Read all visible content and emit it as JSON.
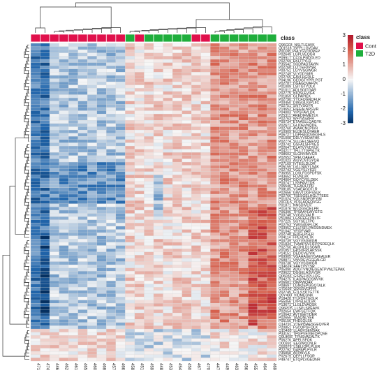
{
  "chart_data": {
    "type": "heatmap",
    "title": "",
    "class_annotation_label": "class",
    "color_scale": {
      "min": -3,
      "max": 3,
      "ticks": [
        3,
        2,
        1,
        0,
        -1,
        -2,
        -3
      ],
      "low_color": "#2166ac",
      "mid_color": "#f7f7f7",
      "high_color": "#d6604d",
      "extreme_color": "#b2182b"
    },
    "class_legend": {
      "title": "class",
      "items": [
        {
          "name": "Cont",
          "color": "#e0104b"
        },
        {
          "name": "T2D",
          "color": "#1fae3c"
        }
      ]
    },
    "columns": [
      "471",
      "474",
      "446",
      "462",
      "461",
      "465",
      "460",
      "468",
      "457",
      "466",
      "458",
      "451",
      "459",
      "448",
      "453",
      "454",
      "450",
      "467",
      "470",
      "447",
      "449",
      "463",
      "456",
      "455",
      "464",
      "469"
    ],
    "column_class": [
      "Cont",
      "Cont",
      "Cont",
      "Cont",
      "Cont",
      "Cont",
      "Cont",
      "Cont",
      "Cont",
      "Cont",
      "T2D",
      "Cont",
      "T2D",
      "T2D",
      "T2D",
      "T2D",
      "T2D",
      "Cont",
      "Cont",
      "T2D",
      "T2D",
      "T2D",
      "T2D",
      "T2D",
      "T2D",
      "T2D"
    ],
    "row_labels": [
      "Q96G03_NSLTLEAVK",
      "Q01518_ISFPLLGVDAV",
      "P0DJI8_PHLYGVTIDPEP",
      "P02649_LGPLVEQGR",
      "P09917_CCDLPNDDLED",
      "P02769_EKLTTYLR",
      "P35542_SGDPAQTAVIN",
      "P02768_LLTTEFVPSR",
      "P00751_LGYVSGWGR",
      "P02749_VLYDDYMR",
      "P02765_EAVLHGDLE",
      "P04196_GEDGTYPPLPGT",
      "P02787_DGAGDVAFVK",
      "P01009_LSITGTYDLK",
      "P01011_ADLSGITGAR",
      "P02775_NIQSLEVIGK",
      "P01859_GLPAPIEK",
      "P02790_YYCFQGNQFLR",
      "P00450_DIASGLIGPLIIC",
      "P02751_SNTVSGYR",
      "P19652_EIEEALNPGVR",
      "P04003_YIPSFAVLDK",
      "P25311_AREDIFMETLK",
      "P02763_WFYIASAFR",
      "P00734_ETAASLLQAGYK",
      "P02671_GLIDEVNQDF",
      "P02760_AVAACNLPIVR",
      "P10909_ELDESLQVAER",
      "P06727_LGPHAGDVEGHLS",
      "P01008_DDLYVSDAFHK",
      "P02774_SLLGELSEEVQ",
      "P20742_GSFALSFPVES",
      "P02647_DLATVYVDVLK",
      "P04217_TFLLTTGPSLTK",
      "P08603_SLGNVIMVCR",
      "P02652_SPELQAEAK",
      "P01023_AIGYLNTGYQR",
      "P27169_IVTESLDLDR",
      "P05155_LVLLNAIYLSAK",
      "P02743_VGEYSLYIGR",
      "P36955_LQSLFDSPDFSK",
      "P43652_FLVNLVK",
      "P04004_GQYCYELDEK",
      "P00747_LSSPAVITDK",
      "P05546_TLEAQLTPR",
      "P08185_VSAEAGDTLR",
      "P02656_GWVTDGFSSLK",
      "P02766_TSESGELHGLTTEEE",
      "P01024_VQLSNDFDEYIM",
      "P0C0L5_VLSLAQEQVGG",
      "P01871_NNSDIVLR",
      "P01876_WLQGSQELPR",
      "P06396_TPSAAYLWVGTG",
      "P00748_VVGGLVALR",
      "P51884_LGSFEGLVNLTF",
      "P07225_SGYSELTPC",
      "P02753_YWGVASFLQK",
      "P03952_CLLFSFLPASSINDMEK",
      "P01042_YFIDFVAR",
      "P02748_IEDGLPGLR",
      "P04114_FPEVDVLTK",
      "P00739_VGYVSGWGR",
      "P01834_TVAAPSVFIFPPSDEQLK",
      "P02750_ALGHLDLSGNR",
      "P01857_GPSVFPLAPSSK",
      "P14151_DEDCVEIYIK",
      "P69905_VGAHAGEYGAEALER",
      "P68871_VNVDEVGGEALGR",
      "P00738_VGYVSGWGR",
      "Q14624_FAHTVVTSR",
      "P05090_ADGTVNQIEGEATPVNLTEPAK",
      "P29622_DGGELASVVSR",
      "Q06033_GSPEFVPLLQG",
      "P04275_ILAGPAGDSNVVK",
      "P06681_QWPWQAK",
      "P08697_LGNQEPGGQTALK",
      "O75636_QDGSVDFFR",
      "P02745_GTLSYPTGTTK",
      "Q9Y490_VIDMEGNK",
      "P18428_ITLPDFTGDLR",
      "P55056_LYPSLEDLVK",
      "P13671_LLGLDVAQSK",
      "Q96PD5_LLSPLSPEAVK",
      "P02654_EWFSETFQK",
      "P10643_AVTIGETIDER",
      "P02655_TAAQNLYEK",
      "P05156_FHDLQLSK",
      "O14791_VTEPISAESGEQVER",
      "P20851_FSCQPGFQLK",
      "Q15485_LLAGVSENSAK",
      "P33151_TPGPVEVIEIQPQSE",
      "Q9UK55_TFNSVAEALTK",
      "P06276_APELSFQK",
      "O00391_EEGWQLNLR",
      "Q92876_LSELIQPLPLER",
      "P22792_GAPAPLPVLR",
      "P35858_AFPAIVLK",
      "P02679_QEPLLFSGR",
      "P49747_ETQPLVGEDNR"
    ],
    "values_note": "standardized abundance (z-score)"
  }
}
